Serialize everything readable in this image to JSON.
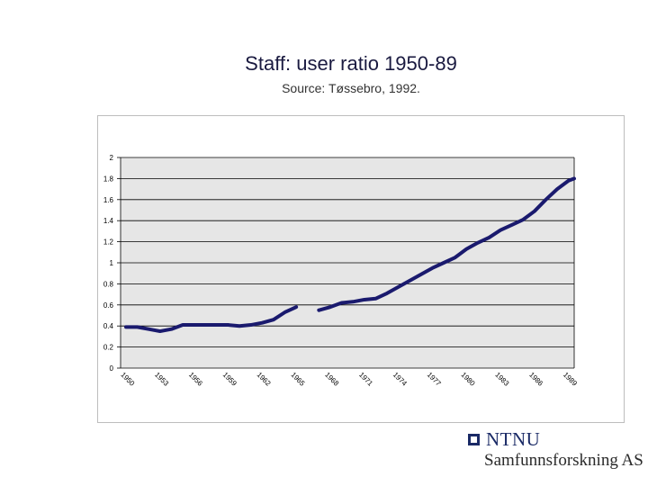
{
  "title": "Staff: user ratio 1950-89",
  "subtitle": "Source: Tøssebro, 1992.",
  "logo": {
    "name": "NTNU",
    "subtitle": "Samfunnsforskning AS"
  },
  "chart_data": {
    "type": "line",
    "title": "",
    "xlabel": "",
    "ylabel": "",
    "ylim": [
      0,
      2
    ],
    "yticks": [
      "0",
      "0.2",
      "0.4",
      "0.6",
      "0.8",
      "1",
      "1.2",
      "1.4",
      "1.6",
      "1.8",
      "2"
    ],
    "xtick_labels": [
      "1950",
      "1953",
      "1956",
      "1959",
      "1962",
      "1965",
      "1968",
      "1971",
      "1974",
      "1977",
      "1980",
      "1983",
      "1986",
      "1989"
    ],
    "grid": true,
    "legend": "none",
    "colors": {
      "line": "#1a1a6e",
      "plot_bg": "#e6e6e6",
      "grid": "#000000"
    },
    "series": [
      {
        "x": [
          1950,
          1951,
          1952,
          1953,
          1954,
          1955,
          1956,
          1957,
          1958,
          1959,
          1960,
          1961,
          1962,
          1963,
          1964,
          1965,
          1966,
          1967,
          1968,
          1969,
          1970,
          1971,
          1972,
          1973,
          1974,
          1975,
          1976,
          1977,
          1978,
          1979,
          1980,
          1981,
          1982,
          1983,
          1984,
          1985,
          1986,
          1987,
          1988,
          1989
        ],
        "values": [
          0.39,
          0.39,
          0.37,
          0.35,
          0.37,
          0.41,
          0.41,
          0.41,
          0.41,
          0.41,
          0.4,
          0.41,
          0.43,
          0.46,
          0.53,
          0.58,
          null,
          0.55,
          0.58,
          0.62,
          0.63,
          0.65,
          0.66,
          0.71,
          0.77,
          0.83,
          0.89,
          0.95,
          1.0,
          1.05,
          1.13,
          1.19,
          1.24,
          1.31,
          1.36,
          1.41,
          1.49,
          1.6,
          1.7,
          1.78
        ]
      },
      {
        "x": [
          1989.5
        ],
        "values": [
          1.8
        ]
      }
    ]
  }
}
